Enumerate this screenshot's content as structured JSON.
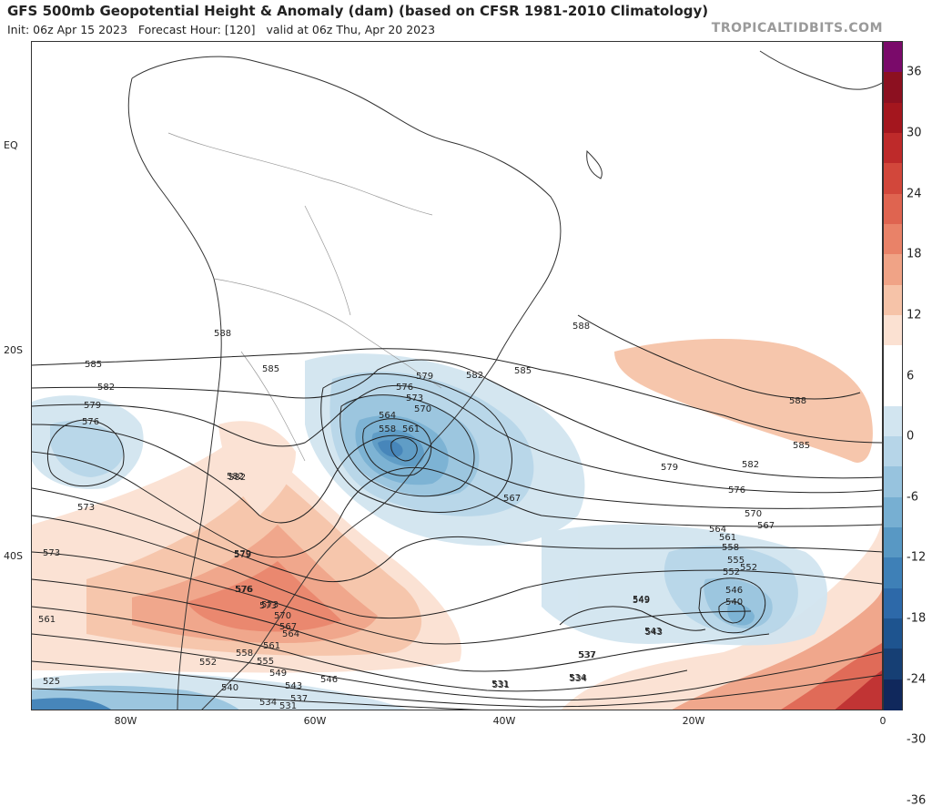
{
  "header": {
    "title": "GFS 500mb Geopotential Height & Anomaly (dam) (based on CFSR 1981-2010 Climatology)",
    "init": "Init: 06z Apr 15 2023",
    "forecast_hour": "Forecast Hour: [120]",
    "valid": "valid at 06z Thu, Apr 20 2023",
    "brand": "TROPICALTIDBITS.COM"
  },
  "axes": {
    "lat_labels": [
      "EQ",
      "20S",
      "40S"
    ],
    "lon_labels": [
      "80W",
      "60W",
      "40W",
      "20W",
      "0"
    ]
  },
  "colorbar": {
    "labels": [
      "36",
      "30",
      "24",
      "18",
      "12",
      "6",
      "0",
      "-6",
      "-12",
      "-18",
      "-24",
      "-30",
      "-36"
    ],
    "colors": [
      "#7a0a6a",
      "#8c1020",
      "#a4161e",
      "#be2a2a",
      "#d2473b",
      "#df6450",
      "#e98268",
      "#f0a386",
      "#f6c3a8",
      "#fbe1d2",
      "#ffffff",
      "#ffffff",
      "#d2e5f0",
      "#b6d5e8",
      "#97c3de",
      "#77afd2",
      "#5898c4",
      "#3e80b7",
      "#2d69a9",
      "#1e548f",
      "#163f74",
      "#10285c"
    ]
  },
  "contour_labels": [
    "585",
    "582",
    "579",
    "576",
    "573",
    "588",
    "585",
    "585",
    "582",
    "579",
    "576",
    "573",
    "570",
    "564",
    "561",
    "558",
    "582",
    "579",
    "576",
    "573",
    "570",
    "567",
    "564",
    "561",
    "558",
    "552",
    "540",
    "546",
    "549",
    "543",
    "537",
    "534",
    "531",
    "573",
    "582",
    "579",
    "576",
    "573",
    "561",
    "555",
    "552",
    "549",
    "543",
    "537",
    "534",
    "531",
    "525",
    "567",
    "588",
    "588",
    "585",
    "582",
    "579",
    "576",
    "570",
    "567",
    "564",
    "561",
    "558",
    "555",
    "552",
    "546",
    "540",
    "549",
    "543",
    "537",
    "534",
    "531"
  ]
}
